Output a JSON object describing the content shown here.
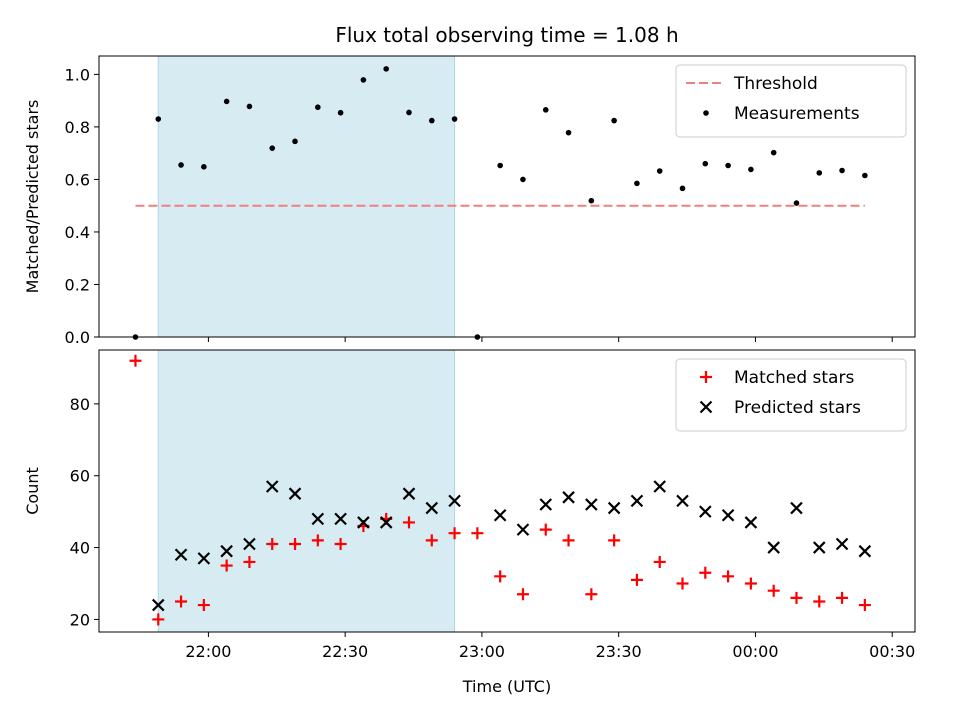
{
  "chart_data": {
    "title": "Flux total observing time = 1.08 h",
    "xlabel": "Time (UTC)",
    "x_tick_labels": [
      "22:00",
      "22:30",
      "23:00",
      "23:30",
      "00:00",
      "00:30"
    ],
    "x_tick_minutes": [
      0,
      30,
      60,
      90,
      120,
      150
    ],
    "xlim_minutes": [
      -24,
      155
    ],
    "shaded_region_minutes": [
      -11,
      54
    ],
    "shade_color": "#add8e6",
    "times_minutes": [
      -16,
      -11,
      -6,
      -1,
      4,
      9,
      14,
      19,
      24,
      29,
      34,
      39,
      44,
      49,
      54,
      59,
      64,
      69,
      74,
      79,
      84,
      89,
      94,
      99,
      104,
      109,
      114,
      119,
      124,
      129,
      134,
      139,
      144
    ],
    "panels": [
      {
        "type": "scatter",
        "ylabel": "Matched/Predicted stars",
        "ylim": [
          0,
          1.07
        ],
        "yticks": [
          0.0,
          0.2,
          0.4,
          0.6,
          0.8,
          1.0
        ],
        "ytick_labels": [
          "0.0",
          "0.2",
          "0.4",
          "0.6",
          "0.8",
          "1.0"
        ],
        "threshold": {
          "name": "Threshold",
          "value": 0.5,
          "x_range_minutes": [
            -16,
            144
          ],
          "color": "#f08080"
        },
        "series": [
          {
            "name": "Measurements",
            "color": "#000000",
            "marker": "dot",
            "values": [
              0.0,
              0.83,
              0.655,
              0.648,
              0.897,
              0.878,
              0.719,
              0.745,
              0.875,
              0.854,
              0.979,
              1.021,
              0.855,
              0.824,
              0.83,
              0.0,
              0.653,
              0.6,
              0.865,
              0.778,
              0.519,
              0.824,
              0.585,
              0.632,
              0.566,
              0.66,
              0.653,
              0.638,
              0.702,
              0.51,
              0.625,
              0.634,
              0.615
            ]
          }
        ],
        "legend_position": "top-right"
      },
      {
        "type": "scatter",
        "ylabel": "Count",
        "ylim": [
          16.5,
          95
        ],
        "yticks": [
          20,
          40,
          60,
          80
        ],
        "ytick_labels": [
          "20",
          "40",
          "60",
          "80"
        ],
        "series": [
          {
            "name": "Matched stars",
            "color": "#ff0000",
            "marker": "plus",
            "values": [
              92,
              20,
              25,
              24,
              35,
              36,
              41,
              41,
              42,
              41,
              46,
              48,
              47,
              42,
              44,
              44,
              32,
              27,
              45,
              42,
              27,
              42,
              31,
              36,
              30,
              33,
              32,
              30,
              28,
              26,
              25,
              26,
              24
            ]
          },
          {
            "name": "Predicted stars",
            "color": "#000000",
            "marker": "x",
            "values": [
              null,
              24,
              38,
              37,
              39,
              41,
              57,
              55,
              48,
              48,
              47,
              47,
              55,
              51,
              53,
              null,
              49,
              45,
              52,
              54,
              52,
              51,
              53,
              57,
              53,
              50,
              49,
              47,
              40,
              51,
              40,
              41,
              39
            ]
          }
        ],
        "legend_position": "top-right"
      }
    ]
  }
}
